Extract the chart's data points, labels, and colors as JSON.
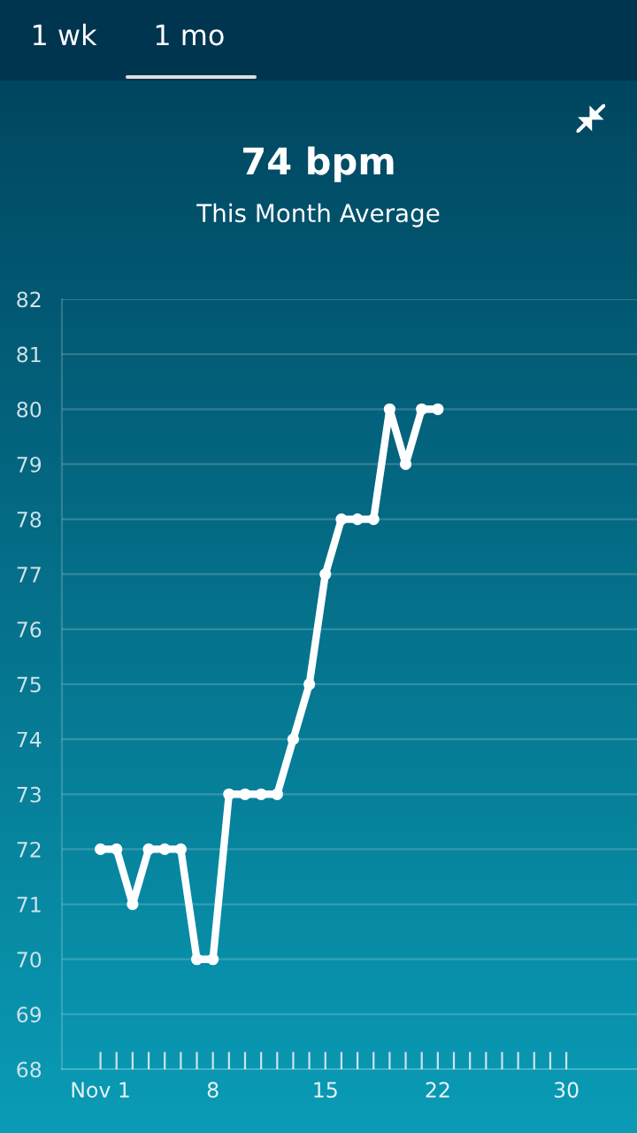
{
  "chart_data": {
    "type": "line",
    "title": "74 bpm",
    "subtitle": "This Month Average",
    "annotations": [
      "1 wk",
      "1 mo"
    ],
    "x": [
      1,
      2,
      3,
      4,
      5,
      6,
      7,
      8,
      9,
      10,
      11,
      12,
      13,
      14,
      15,
      16,
      17,
      18,
      19,
      20,
      21,
      22
    ],
    "series": [
      {
        "color": "#ffffff",
        "values": [
          72,
          72,
          71,
          72,
          72,
          72,
          70,
          70,
          73,
          73,
          73,
          73,
          74,
          75,
          77,
          78,
          78,
          78,
          80,
          79,
          80,
          80
        ]
      }
    ],
    "xlim": [
      -1.4,
      34.4
    ],
    "xticks": [
      {
        "value": 1,
        "label": "Nov 1"
      },
      {
        "value": 2,
        "label": null
      },
      {
        "value": 3,
        "label": null
      },
      {
        "value": 4,
        "label": null
      },
      {
        "value": 5,
        "label": null
      },
      {
        "value": 6,
        "label": null
      },
      {
        "value": 7,
        "label": null
      },
      {
        "value": 8,
        "label": "8"
      },
      {
        "value": 9,
        "label": null
      },
      {
        "value": 10,
        "label": null
      },
      {
        "value": 11,
        "label": null
      },
      {
        "value": 12,
        "label": null
      },
      {
        "value": 13,
        "label": null
      },
      {
        "value": 14,
        "label": null
      },
      {
        "value": 15,
        "label": "15"
      },
      {
        "value": 16,
        "label": null
      },
      {
        "value": 17,
        "label": null
      },
      {
        "value": 18,
        "label": null
      },
      {
        "value": 19,
        "label": null
      },
      {
        "value": 20,
        "label": null
      },
      {
        "value": 21,
        "label": null
      },
      {
        "value": 22,
        "label": "22"
      },
      {
        "value": 23,
        "label": null
      },
      {
        "value": 24,
        "label": null
      },
      {
        "value": 25,
        "label": null
      },
      {
        "value": 26,
        "label": null
      },
      {
        "value": 27,
        "label": null
      },
      {
        "value": 28,
        "label": null
      },
      {
        "value": 29,
        "label": null
      },
      {
        "value": 30,
        "label": "30"
      }
    ],
    "ylim": [
      68,
      82
    ],
    "yticks": [
      68,
      69,
      70,
      71,
      72,
      73,
      74,
      75,
      76,
      77,
      78,
      79,
      80,
      81,
      82
    ],
    "grid": "y",
    "marker": "circle",
    "line_style": "solid",
    "legend": false
  }
}
